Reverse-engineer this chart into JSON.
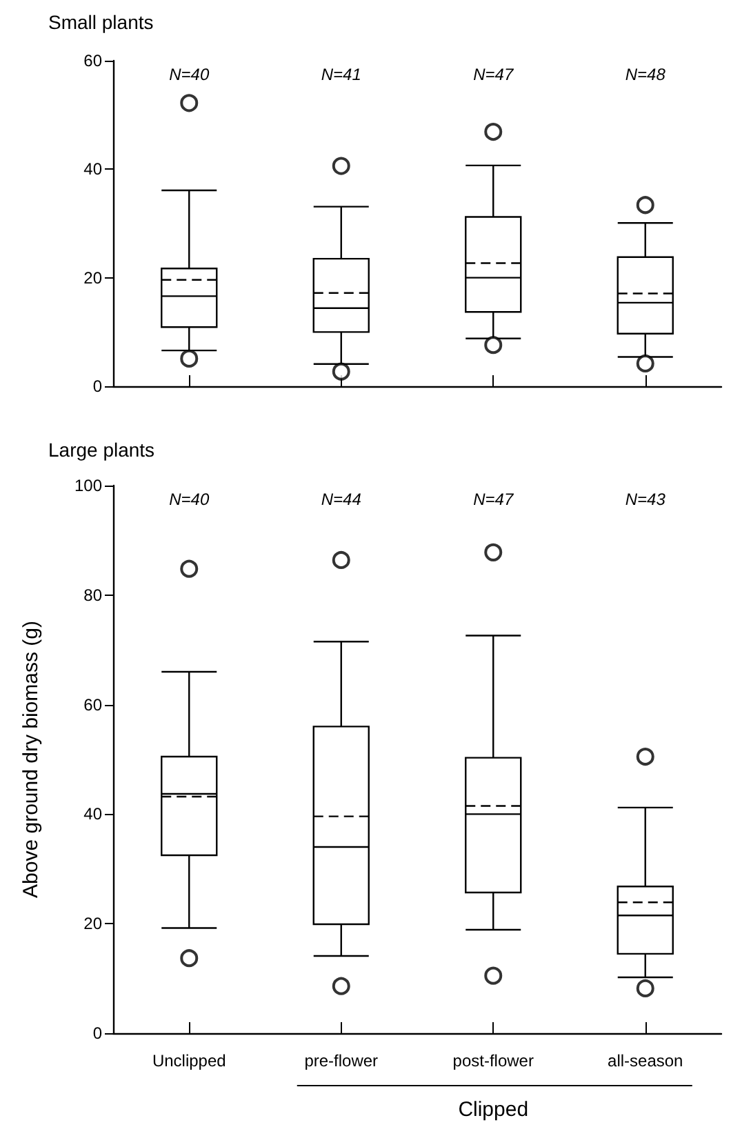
{
  "chart_data": [
    {
      "type": "box",
      "title": "Small plants",
      "categories": [
        null,
        null,
        null,
        null
      ],
      "ylim": [
        0,
        60
      ],
      "yticks": [
        0,
        20,
        40,
        60
      ],
      "tick_labels": "y",
      "grid": false,
      "color": "#000000",
      "boxes": [
        {
          "low": 6.6,
          "q1": 10.9,
          "median": 16.6,
          "q3": 21.7,
          "high": 36.1,
          "mean": 19.6,
          "outliers": [
            52.2,
            5.1
          ]
        },
        {
          "low": 4.1,
          "q1": 10.0,
          "median": 14.4,
          "q3": 23.5,
          "high": 33.1,
          "mean": 17.2,
          "outliers": [
            40.6,
            2.7
          ]
        },
        {
          "low": 8.8,
          "q1": 13.7,
          "median": 20.0,
          "q3": 31.2,
          "high": 40.7,
          "mean": 22.7,
          "outliers": [
            46.9,
            7.6
          ]
        },
        {
          "low": 5.4,
          "q1": 9.7,
          "median": 15.4,
          "q3": 23.8,
          "high": 30.1,
          "mean": 17.1,
          "outliers": [
            33.4,
            4.2
          ]
        }
      ],
      "annotations": [
        "N=40",
        "N=41",
        "N=47",
        "N=48"
      ]
    },
    {
      "type": "box",
      "title": "Large plants",
      "ylabel": "Above ground dry biomass (g)",
      "categories": [
        "Unclipped",
        "pre-flower",
        "post-flower",
        "all-season"
      ],
      "ylim": [
        0,
        100
      ],
      "yticks": [
        0,
        20,
        40,
        60,
        80,
        100
      ],
      "grid": false,
      "color": "#000000",
      "boxes": [
        {
          "low": 19.2,
          "q1": 32.5,
          "median": 43.7,
          "q3": 50.5,
          "high": 66.0,
          "mean": 43.2,
          "outliers": [
            84.8,
            13.7
          ]
        },
        {
          "low": 14.1,
          "q1": 19.9,
          "median": 34.0,
          "q3": 56.0,
          "high": 71.5,
          "mean": 39.6,
          "outliers": [
            86.4,
            8.6
          ]
        },
        {
          "low": 18.9,
          "q1": 25.7,
          "median": 40.0,
          "q3": 50.3,
          "high": 72.6,
          "mean": 41.5,
          "outliers": [
            87.8,
            10.5
          ]
        },
        {
          "low": 10.2,
          "q1": 14.5,
          "median": 21.5,
          "q3": 26.8,
          "high": 41.2,
          "mean": 23.9,
          "outliers": [
            50.5,
            8.2
          ]
        }
      ],
      "annotations": [
        "N=40",
        "N=44",
        "N=47",
        "N=43",
        "Clipped"
      ]
    }
  ]
}
